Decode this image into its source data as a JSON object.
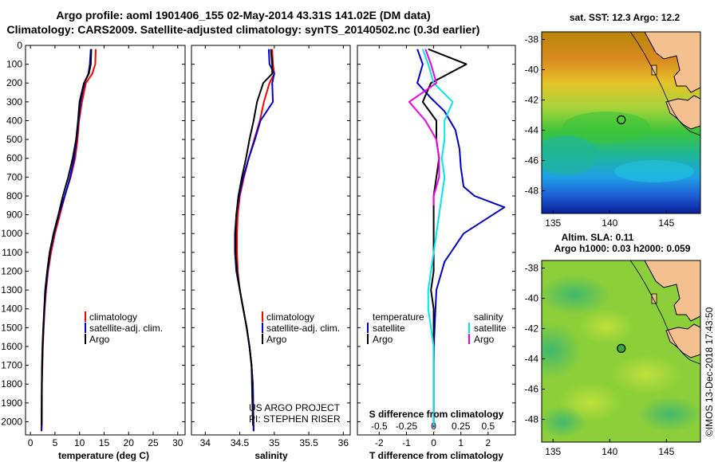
{
  "header": {
    "title_line1": "Argo profile: aoml 1901406_155 02-May-2014 43.31S 141.02E (DM data)",
    "title_line2": "Climatology: CARS2009. Satellite-adjusted climatology: synTS_20140502.nc (0.3d earlier)"
  },
  "colors": {
    "climatology": "#ff0000",
    "satellite": "#0000cc",
    "argo": "#000000",
    "salinity_satellite": "#00e5ee",
    "salinity_argo": "#ee00ee"
  },
  "credits": {
    "project": "US ARGO PROJECT",
    "pi": "PI: STEPHEN RISER",
    "imos": "©IMOS 13-Dec-2018 17:43:50"
  },
  "maps": {
    "sst_title": "sat. SST: 12.3 Argo: 12.2",
    "sla_title_line1": "Altim. SLA: 0.11",
    "sla_title_line2": "Argo h1000: 0.03 h2000: 0.059",
    "lat_ticks": [
      "-38",
      "-40",
      "-42",
      "-44",
      "-46",
      "-48"
    ],
    "lon_ticks": [
      "135",
      "140",
      "145"
    ],
    "lon_range": [
      134,
      148
    ],
    "lat_range": [
      -49.5,
      -37.5
    ],
    "float_position": {
      "lon": 141.02,
      "lat": -43.31
    },
    "icons": [
      "sst-map-image",
      "sla-map-image",
      "float-marker-icon"
    ]
  },
  "chart_data": [
    {
      "type": "line",
      "name": "temperature",
      "xlabel": "temperature (deg C)",
      "ylabel": "",
      "xlim": [
        -1,
        31.5
      ],
      "ylim": [
        2070,
        0
      ],
      "xticks": [
        0,
        5,
        10,
        15,
        20,
        25,
        30
      ],
      "xtick_labels": [
        "0",
        "5",
        "10",
        "15",
        "20",
        "25",
        "30"
      ],
      "yticks": [
        0,
        100,
        200,
        300,
        400,
        500,
        600,
        700,
        800,
        900,
        1000,
        1100,
        1200,
        1300,
        1400,
        1500,
        1600,
        1700,
        1800,
        1900,
        2000
      ],
      "ytick_labels": [
        "0",
        "100",
        "200",
        "300",
        "400",
        "500",
        "600",
        "700",
        "800",
        "900",
        "1000",
        "1100",
        "1200",
        "1300",
        "1400",
        "1500",
        "1600",
        "1700",
        "1800",
        "1900",
        "2000"
      ],
      "legend": [
        "climatology",
        "satellite-adj. clim.",
        "Argo"
      ],
      "series": [
        {
          "name": "climatology",
          "color": "#ff0000",
          "x": [
            13.3,
            13.2,
            12.6,
            11.3,
            10.5,
            9.9,
            9.6,
            9.1,
            8.2,
            7.0,
            6.0,
            5.0,
            4.2,
            3.6,
            3.2,
            2.9,
            2.7,
            2.55,
            2.45,
            2.35,
            2.3
          ],
          "y": [
            20,
            100,
            150,
            200,
            300,
            400,
            500,
            600,
            700,
            800,
            900,
            1000,
            1100,
            1200,
            1300,
            1400,
            1500,
            1600,
            1700,
            1800,
            2050
          ]
        },
        {
          "name": "satellite-adj. clim.",
          "color": "#0000cc",
          "x": [
            12.3,
            12.1,
            11.8,
            11.0,
            10.2,
            9.8,
            9.4,
            8.9,
            8.1,
            7.0,
            5.8,
            4.8,
            4.0,
            3.5,
            3.1,
            2.85,
            2.65,
            2.5,
            2.4,
            2.3,
            2.25
          ],
          "y": [
            20,
            100,
            150,
            200,
            300,
            400,
            500,
            600,
            700,
            800,
            900,
            1000,
            1100,
            1200,
            1300,
            1400,
            1500,
            1600,
            1700,
            1800,
            2050
          ]
        },
        {
          "name": "Argo",
          "color": "#000000",
          "x": [
            12.4,
            12.3,
            11.9,
            10.9,
            10.0,
            9.7,
            9.3,
            8.6,
            7.7,
            6.6,
            5.7,
            4.7,
            3.9,
            3.4,
            3.0,
            2.8,
            2.6,
            2.45,
            2.35,
            2.3
          ],
          "y": [
            20,
            100,
            150,
            200,
            300,
            400,
            500,
            600,
            700,
            800,
            900,
            1000,
            1100,
            1200,
            1300,
            1400,
            1500,
            1600,
            1700,
            2020
          ]
        }
      ]
    },
    {
      "type": "line",
      "name": "salinity",
      "xlabel": "salinity",
      "ylabel": "",
      "xlim": [
        33.8,
        36.1
      ],
      "ylim": [
        2070,
        0
      ],
      "xticks": [
        34,
        34.5,
        35,
        35.5,
        36
      ],
      "xtick_labels": [
        "34",
        "34.5",
        "35",
        "35.5",
        "36"
      ],
      "legend": [
        "climatology",
        "satellite-adj. clim.",
        "Argo"
      ],
      "annotations": [
        "US ARGO PROJECT",
        "PI: STEPHEN RISER"
      ],
      "series": [
        {
          "name": "climatology",
          "color": "#ff0000",
          "x": [
            34.97,
            34.98,
            35.0,
            34.93,
            34.85,
            34.79,
            34.71,
            34.63,
            34.56,
            34.5,
            34.47,
            34.46,
            34.46,
            34.47,
            34.5,
            34.55,
            34.6,
            34.64,
            34.67,
            34.69,
            34.7
          ],
          "y": [
            20,
            100,
            150,
            200,
            300,
            400,
            500,
            600,
            700,
            800,
            900,
            1000,
            1100,
            1200,
            1300,
            1400,
            1500,
            1600,
            1700,
            1800,
            2050
          ]
        },
        {
          "name": "satellite-adj. clim.",
          "color": "#0000cc",
          "x": [
            34.92,
            34.93,
            35.0,
            34.97,
            34.98,
            34.8,
            34.72,
            34.63,
            34.55,
            34.49,
            34.45,
            34.43,
            34.43,
            34.45,
            34.5,
            34.55,
            34.6,
            34.64,
            34.67,
            34.69,
            34.7
          ],
          "y": [
            20,
            100,
            150,
            200,
            300,
            400,
            500,
            600,
            700,
            800,
            900,
            1000,
            1100,
            1200,
            1300,
            1400,
            1500,
            1600,
            1700,
            1800,
            2050
          ]
        },
        {
          "name": "Argo",
          "color": "#000000",
          "x": [
            34.95,
            34.97,
            34.97,
            34.84,
            34.75,
            34.7,
            34.64,
            34.59,
            34.53,
            34.48,
            34.45,
            34.44,
            34.44,
            34.46,
            34.5,
            34.55,
            34.6,
            34.64,
            34.67,
            34.69
          ],
          "y": [
            20,
            100,
            150,
            200,
            300,
            400,
            500,
            600,
            700,
            800,
            900,
            1000,
            1100,
            1200,
            1300,
            1400,
            1500,
            1600,
            1700,
            2020
          ]
        }
      ]
    },
    {
      "type": "line",
      "name": "difference from climatology",
      "xlabel": "T difference from climatology",
      "xlabel_top": "S difference from climatology",
      "xlim": [
        -2.8,
        3.0
      ],
      "ylim": [
        2070,
        0
      ],
      "xticks": [
        -2,
        -1,
        0,
        1,
        2
      ],
      "xtick_labels": [
        "-2",
        "-1",
        "0",
        "1",
        "2"
      ],
      "xticks_top_positions": [
        -2,
        -1,
        0,
        1,
        2
      ],
      "xtick_labels_top": [
        "-0.5",
        "-0.25",
        "0",
        "0.25",
        "0.5"
      ],
      "legend_temperature": {
        "title": "temperature",
        "entries": [
          "satellite",
          "Argo"
        ]
      },
      "legend_salinity": {
        "title": "salinity",
        "entries": [
          "satellite",
          "Argo"
        ]
      },
      "series": [
        {
          "name": "temperature satellite",
          "color": "#0000cc",
          "x": [
            -0.6,
            -0.4,
            -0.6,
            -0.1,
            0.4,
            0.8,
            0.95,
            1.0,
            1.1,
            1.5,
            2.6,
            1.1,
            0.4,
            0.1,
            0.05,
            0.02,
            0.0,
            0.0,
            0.0,
            0.0
          ],
          "y": [
            20,
            100,
            200,
            280,
            350,
            450,
            550,
            650,
            750,
            800,
            860,
            1000,
            1150,
            1300,
            1450,
            1550,
            1700,
            1800,
            1900,
            2030
          ]
        },
        {
          "name": "temperature Argo",
          "color": "#000000",
          "x": [
            -0.2,
            1.2,
            -0.1,
            -0.4,
            0.1,
            0.1,
            0.2,
            0.1,
            0.0,
            0.0,
            0.0,
            0.0,
            0.0,
            -0.1,
            0.0,
            0.0,
            0.0,
            0.0,
            0.0
          ],
          "y": [
            20,
            100,
            200,
            300,
            400,
            500,
            600,
            700,
            800,
            900,
            1000,
            1100,
            1200,
            1300,
            1400,
            1500,
            1600,
            1800,
            2020
          ]
        },
        {
          "name": "salinity satellite",
          "color": "#00e5ee",
          "x": [
            -0.4,
            -0.2,
            0.0,
            0.7,
            0.4,
            0.4,
            0.3,
            0.4,
            0.3,
            0.2,
            0.1,
            0.0,
            -0.1,
            -0.2,
            -0.2,
            -0.1,
            0.0,
            0.0,
            0.0
          ],
          "y": [
            20,
            100,
            200,
            300,
            400,
            500,
            600,
            700,
            800,
            900,
            1000,
            1100,
            1200,
            1300,
            1400,
            1500,
            1600,
            1800,
            2020
          ]
        },
        {
          "name": "salinity Argo",
          "color": "#ee00ee",
          "x": [
            -0.3,
            -0.1,
            0.1,
            -0.9,
            -0.3,
            0.1,
            0.2,
            0.2,
            0.0,
            0.0
          ],
          "y": [
            20,
            100,
            200,
            300,
            400,
            500,
            600,
            700,
            800,
            850
          ]
        }
      ]
    }
  ]
}
